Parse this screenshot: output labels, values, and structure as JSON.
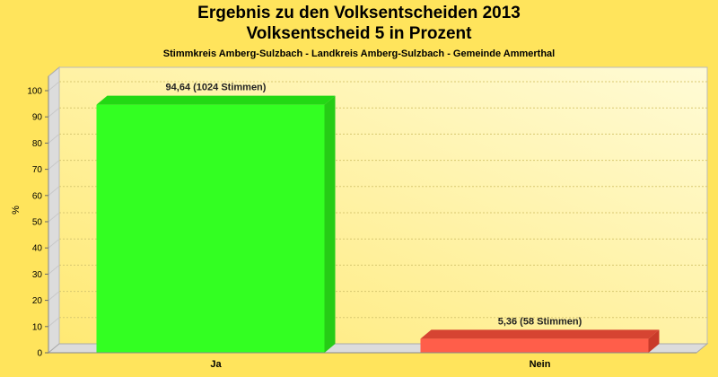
{
  "header": {
    "title": "Ergebnis zu den Volksentscheiden 2013",
    "subtitle": "Volksentscheid 5 in Prozent",
    "region": "Stimmkreis Amberg-Sulzbach - Landkreis Amberg-Sulzbach - Gemeinde Ammerthal"
  },
  "chart_data": {
    "type": "bar",
    "title": "Ergebnis zu den Volksentscheiden 2013",
    "subtitle": "Volksentscheid 5 in Prozent",
    "xlabel": "",
    "ylabel": "%",
    "ylim": [
      0,
      100
    ],
    "yticks": [
      0,
      10,
      20,
      30,
      40,
      50,
      60,
      70,
      80,
      90,
      100
    ],
    "grid": true,
    "legend": "none",
    "categories": [
      "Ja",
      "Nein"
    ],
    "values": [
      94.64,
      5.36
    ],
    "data_labels": [
      "94,64 (1024 Stimmen)",
      "5,36 (58 Stimmen)"
    ],
    "colors": {
      "Ja": "#33ff22",
      "Nein": "#ff5e4a"
    }
  }
}
